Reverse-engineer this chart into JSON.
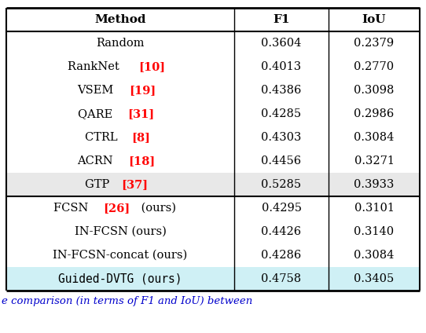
{
  "columns": [
    "Method",
    "F1",
    "IoU"
  ],
  "rows": [
    {
      "method": "Random",
      "cite": "",
      "extra": "",
      "f1": "0.3604",
      "iou": "0.2379",
      "bg": "white",
      "monospace": false
    },
    {
      "method": "RankNet",
      "cite": "[10]",
      "extra": "",
      "f1": "0.4013",
      "iou": "0.2770",
      "bg": "white",
      "monospace": false
    },
    {
      "method": "VSEM",
      "cite": "[19]",
      "extra": "",
      "f1": "0.4386",
      "iou": "0.3098",
      "bg": "white",
      "monospace": false
    },
    {
      "method": "QARE",
      "cite": "[31]",
      "extra": "",
      "f1": "0.4285",
      "iou": "0.2986",
      "bg": "white",
      "monospace": false
    },
    {
      "method": "CTRL",
      "cite": "[8]",
      "extra": "",
      "f1": "0.4303",
      "iou": "0.3084",
      "bg": "white",
      "monospace": false
    },
    {
      "method": "ACRN",
      "cite": "[18]",
      "extra": "",
      "f1": "0.4456",
      "iou": "0.3271",
      "bg": "white",
      "monospace": false
    },
    {
      "method": "GTP",
      "cite": "[37]",
      "extra": "",
      "f1": "0.5285",
      "iou": "0.3933",
      "bg": "#e8e8e8",
      "monospace": false
    },
    {
      "method": "FCSN",
      "cite": "[26]",
      "extra": " (ours)",
      "f1": "0.4295",
      "iou": "0.3101",
      "bg": "white",
      "monospace": false
    },
    {
      "method": "IN-FCSN",
      "cite": "",
      "extra": " (ours)",
      "f1": "0.4426",
      "iou": "0.3140",
      "bg": "white",
      "monospace": false
    },
    {
      "method": "IN-FCSN-concat",
      "cite": "",
      "extra": " (ours)",
      "f1": "0.4286",
      "iou": "0.3084",
      "bg": "white",
      "monospace": false
    },
    {
      "method": "Guided-DVTG",
      "cite": "",
      "extra": " (ours)",
      "f1": "0.4758",
      "iou": "0.3405",
      "bg": "#cff0f5",
      "monospace": true
    }
  ],
  "gtp_separator_after_row": 6,
  "cite_color": "#ff0000",
  "caption_color": "#0000cc",
  "caption_text": "e comparison (in terms of F1 and IoU) between",
  "fontsize": 10.5,
  "header_fontsize": 11
}
